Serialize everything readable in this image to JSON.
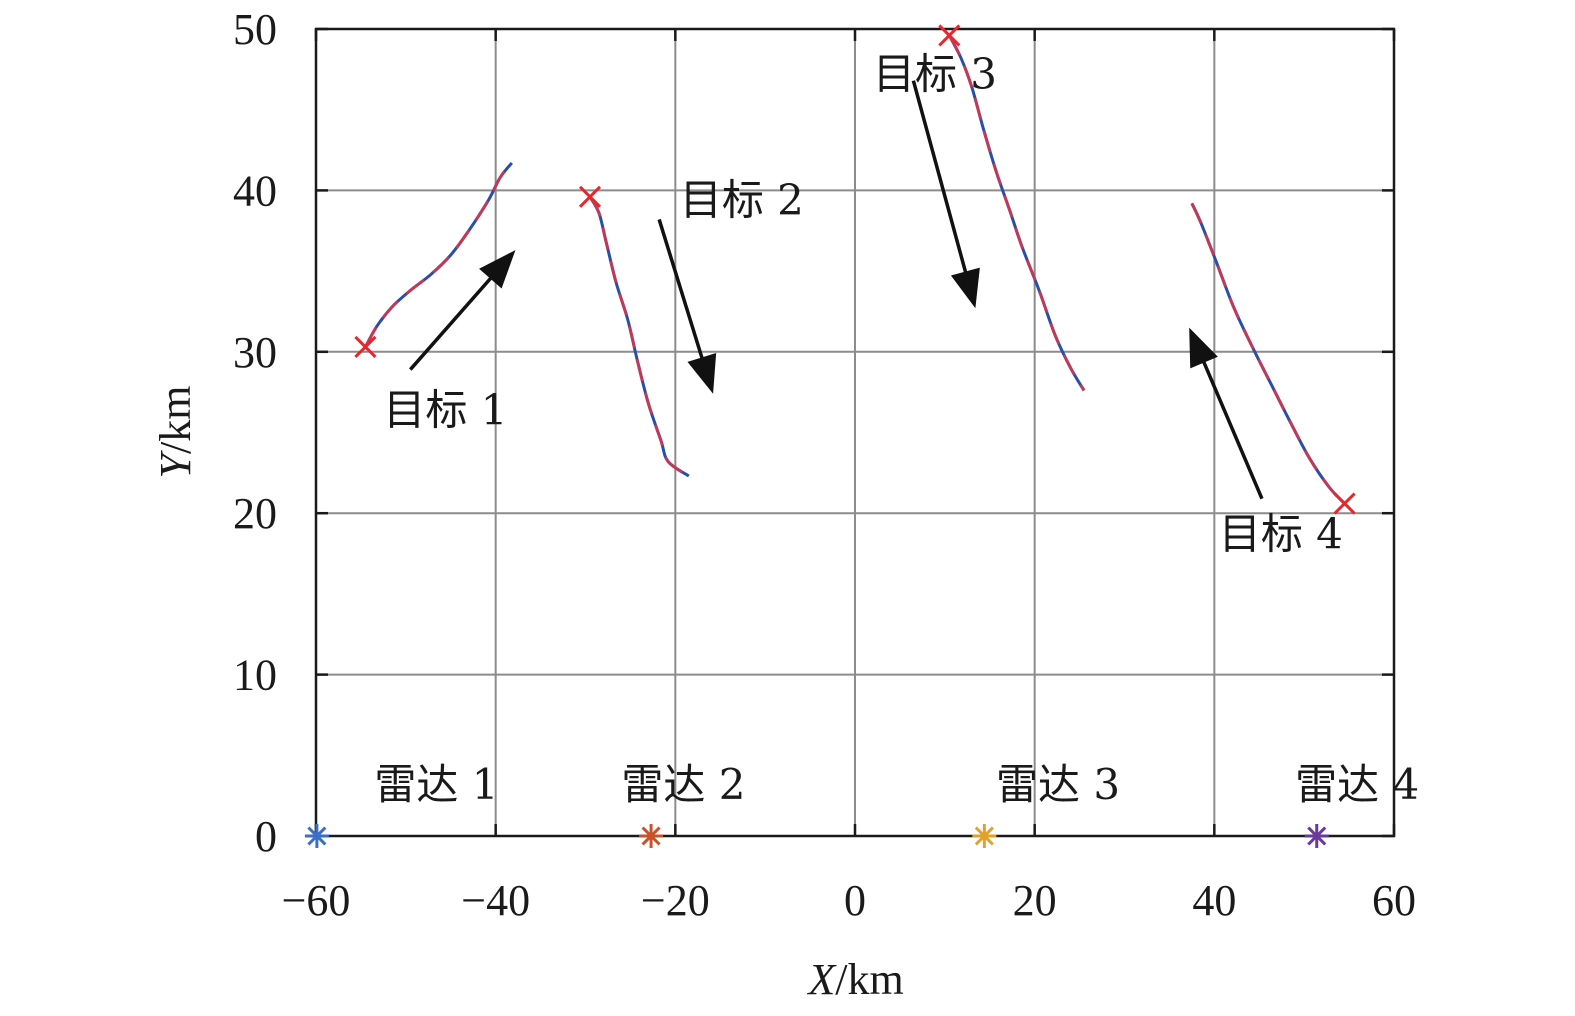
{
  "chart_data": {
    "type": "line",
    "xlabel": {
      "italic": "X",
      "rest": "/km"
    },
    "ylabel": {
      "italic": "Y",
      "rest": "/km"
    },
    "xlim": [
      -60,
      60
    ],
    "ylim": [
      0,
      50
    ],
    "xticks": [
      -60,
      -40,
      -20,
      0,
      20,
      40,
      60
    ],
    "xtick_labels": [
      "−60",
      "−40",
      "−20",
      "0",
      "20",
      "40",
      "60"
    ],
    "yticks": [
      0,
      10,
      20,
      30,
      40,
      50
    ],
    "ytick_labels": [
      "0",
      "10",
      "20",
      "30",
      "40",
      "50"
    ],
    "grid": true,
    "colors": {
      "track_line": "#2b4fa8",
      "track_dash": "#d9364a",
      "start_marker": "#e8262d",
      "grid": "#8c8c8c",
      "axis": "#1a1a1a",
      "arrow": "#111111"
    },
    "targets": [
      {
        "label": "目标 1",
        "start": [
          -54.5,
          30.3
        ],
        "track": [
          [
            -54.5,
            30.3
          ],
          [
            -53.2,
            31.6
          ],
          [
            -51.5,
            32.8
          ],
          [
            -49.5,
            33.8
          ],
          [
            -47.2,
            34.8
          ],
          [
            -45,
            36.0
          ],
          [
            -43,
            37.5
          ],
          [
            -40.8,
            39.4
          ],
          [
            -39.5,
            40.8
          ],
          [
            -38.2,
            41.7
          ]
        ],
        "arrow": {
          "from": [
            -49.5,
            28.9
          ],
          "to": [
            -37.8,
            36.3
          ]
        },
        "label_pos": [
          -52.5,
          25.5
        ]
      },
      {
        "label": "目标 2",
        "start": [
          -29.5,
          39.6
        ],
        "track": [
          [
            -29.5,
            39.6
          ],
          [
            -28.5,
            38.6
          ],
          [
            -27.7,
            36.8
          ],
          [
            -26.6,
            34.3
          ],
          [
            -25.3,
            32.0
          ],
          [
            -24.2,
            29.4
          ],
          [
            -23.0,
            26.8
          ],
          [
            -21.6,
            24.5
          ],
          [
            -20.8,
            23.2
          ],
          [
            -18.5,
            22.3
          ]
        ],
        "arrow": {
          "from": [
            -21.8,
            38.2
          ],
          "to": [
            -15.8,
            27.4
          ]
        },
        "label_pos": [
          -19.5,
          38.5
        ]
      },
      {
        "label": "目标 3",
        "start": [
          10.5,
          49.6
        ],
        "track": [
          [
            10.5,
            49.6
          ],
          [
            11.8,
            48.2
          ],
          [
            13.0,
            46.4
          ],
          [
            14.3,
            43.8
          ],
          [
            15.7,
            41.2
          ],
          [
            17.2,
            38.8
          ],
          [
            18.6,
            36.5
          ],
          [
            20.5,
            33.8
          ],
          [
            22.3,
            31.0
          ],
          [
            24.0,
            29.0
          ],
          [
            25.5,
            27.6
          ]
        ],
        "arrow": {
          "from": [
            6.5,
            46.8
          ],
          "to": [
            13.4,
            32.7
          ]
        },
        "label_pos": [
          2,
          46.3
        ]
      },
      {
        "label": "目标 4",
        "start": [
          54.5,
          20.6
        ],
        "track": [
          [
            37.5,
            39.2
          ],
          [
            38.5,
            38.0
          ],
          [
            40.2,
            35.6
          ],
          [
            42.2,
            32.7
          ],
          [
            44.5,
            30.0
          ],
          [
            46.5,
            27.8
          ],
          [
            48.5,
            25.6
          ],
          [
            50.6,
            23.4
          ],
          [
            52.8,
            21.6
          ],
          [
            54.5,
            20.6
          ]
        ],
        "arrow": {
          "from": [
            45.3,
            20.9
          ],
          "to": [
            37.2,
            31.5
          ]
        },
        "label_pos": [
          40.5,
          17.8
        ]
      }
    ],
    "radars": [
      {
        "label": "雷达 1",
        "x": -59.9,
        "y": 0,
        "color": "#3a6fc4",
        "label_pos": [
          -53.5,
          2.3
        ]
      },
      {
        "label": "雷达 2",
        "x": -22.7,
        "y": 0,
        "color": "#c8532b",
        "label_pos": [
          -26,
          2.3
        ]
      },
      {
        "label": "雷达 3",
        "x": 14.4,
        "y": 0,
        "color": "#e0a22c",
        "label_pos": [
          15.7,
          2.3
        ]
      },
      {
        "label": "雷达 4",
        "x": 51.4,
        "y": 0,
        "color": "#6a3a9a",
        "label_pos": [
          49,
          2.3
        ]
      }
    ]
  }
}
